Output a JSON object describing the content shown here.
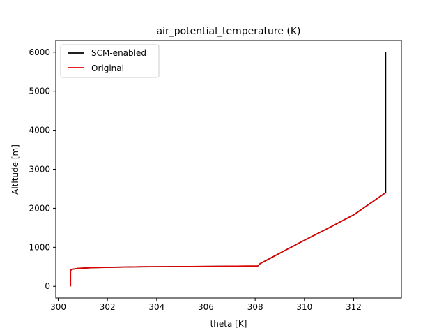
{
  "chart_data": {
    "type": "line",
    "title": "air_potential_temperature (K)",
    "xlabel": "theta [K]",
    "ylabel": "Altitude [m]",
    "xlim": [
      299.9,
      313.94
    ],
    "ylim": [
      -300,
      6300
    ],
    "xticks": [
      300,
      302,
      304,
      306,
      308,
      310,
      312
    ],
    "yticks": [
      0,
      1000,
      2000,
      3000,
      4000,
      5000,
      6000
    ],
    "grid": false,
    "legend_position": "top-left",
    "series": [
      {
        "name": "SCM-enabled",
        "color": "#000000",
        "x": [
          300.5,
          300.5,
          300.52,
          300.6,
          300.8,
          301.5,
          303.3,
          306.0,
          308.1,
          308.2,
          309.0,
          310.0,
          311.0,
          312.0,
          313.3,
          313.3
        ],
        "y": [
          0,
          400,
          420,
          440,
          460,
          480,
          500,
          510,
          520,
          580,
          850,
          1180,
          1500,
          1830,
          2400,
          6000
        ]
      },
      {
        "name": "Original",
        "color": "#e00000",
        "x": [
          300.5,
          300.5,
          300.52,
          300.6,
          300.8,
          301.5,
          303.3,
          306.0,
          308.1,
          308.2,
          309.0,
          310.0,
          311.0,
          312.0,
          313.3
        ],
        "y": [
          0,
          400,
          420,
          440,
          460,
          480,
          500,
          510,
          520,
          580,
          850,
          1180,
          1500,
          1830,
          2400
        ]
      }
    ]
  }
}
